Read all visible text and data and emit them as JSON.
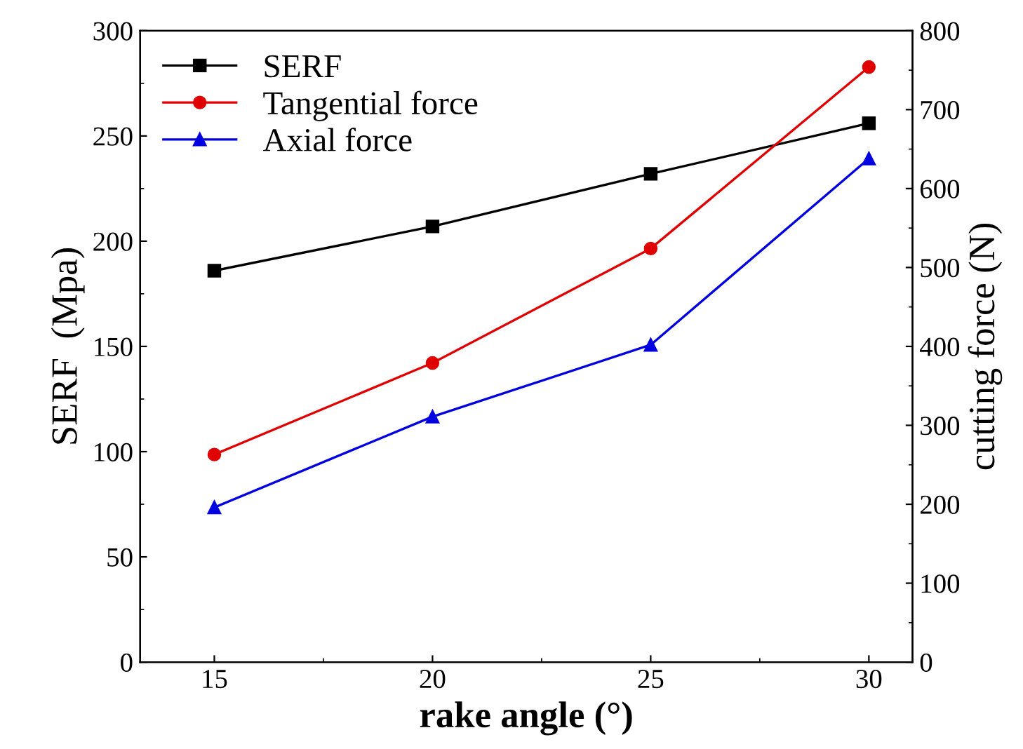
{
  "chart_data": {
    "type": "line",
    "xlabel": "rake angle (°)",
    "ylabel": "SERF  (Mpa)",
    "y2label": "cutting force (N)",
    "x": [
      15,
      20,
      25,
      30
    ],
    "xlim": [
      13.3,
      31
    ],
    "xticks": [
      15,
      20,
      25,
      30
    ],
    "ylim": [
      0,
      300
    ],
    "yticks": [
      0,
      50,
      100,
      150,
      200,
      250,
      300
    ],
    "y2lim": [
      0,
      800
    ],
    "y2ticks": [
      0,
      100,
      200,
      300,
      400,
      500,
      600,
      700,
      800
    ],
    "legend": "top left",
    "grid": false,
    "series": [
      {
        "name": "SERF",
        "color": "#000000",
        "marker": "square",
        "values": [
          186,
          207,
          232,
          256
        ]
      },
      {
        "name": "Tangential force",
        "color": "#e00000",
        "marker": "circle",
        "axis": "y2",
        "values": [
          263,
          379,
          524,
          754
        ]
      },
      {
        "name": "Axial force",
        "color": "#0000e0",
        "marker": "triangle",
        "axis": "y2",
        "values": [
          196,
          311,
          402,
          638
        ]
      }
    ]
  }
}
